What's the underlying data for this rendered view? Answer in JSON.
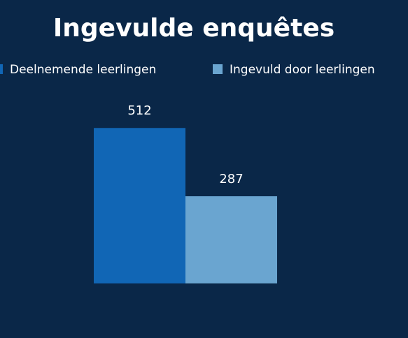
{
  "chart_data": {
    "type": "bar",
    "title": "Ingevulde enquêtes",
    "categories": [
      null
    ],
    "series": [
      {
        "name": "Deelnemende leerlingen",
        "color": "#1166b5",
        "values": [
          512
        ]
      },
      {
        "name": "Ingevuld door leerlingen",
        "color": "#6aa5d0",
        "values": [
          287
        ]
      }
    ],
    "ylim": [
      -180,
      600
    ],
    "legend": "top"
  }
}
